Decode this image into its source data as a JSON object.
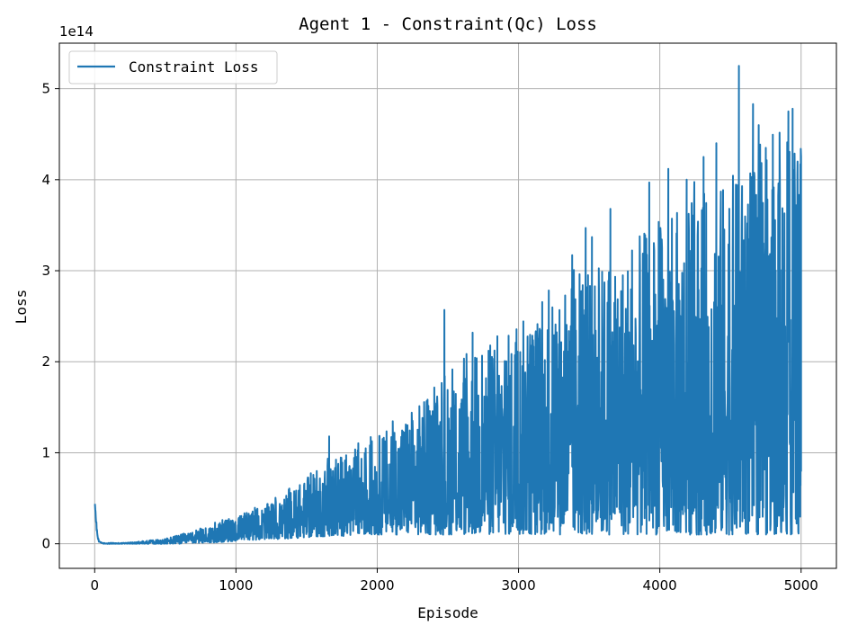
{
  "chart_data": {
    "type": "line",
    "title": "Agent 1 - Constraint(Qc) Loss",
    "xlabel": "Episode",
    "ylabel": "Loss",
    "offset_text": "1e14",
    "y_scale_factor": 100000000000000.0,
    "xlim": [
      -250,
      5250
    ],
    "ylim": [
      -0.27,
      5.5
    ],
    "xticks": [
      0,
      1000,
      2000,
      3000,
      4000,
      5000
    ],
    "xtick_labels": [
      "0",
      "1000",
      "2000",
      "3000",
      "4000",
      "5000"
    ],
    "yticks": [
      0,
      1,
      2,
      3,
      4,
      5
    ],
    "ytick_labels": [
      "0",
      "1",
      "2",
      "3",
      "4",
      "5"
    ],
    "grid": true,
    "legend": {
      "position": "top-left",
      "entries": [
        "Constraint Loss"
      ]
    },
    "series": [
      {
        "name": "Constraint Loss",
        "color": "#1f77b4",
        "x": [
          0,
          10,
          20,
          30,
          40,
          60,
          100,
          200,
          300,
          400,
          500,
          600,
          700,
          800,
          900,
          1000,
          1100,
          1200,
          1300,
          1400,
          1500,
          1600,
          1700,
          1800,
          1900,
          2000,
          2100,
          2200,
          2300,
          2400,
          2500,
          2600,
          2700,
          2800,
          2900,
          3000,
          3100,
          3200,
          3300,
          3400,
          3500,
          3600,
          3700,
          3800,
          3900,
          4000,
          4100,
          4200,
          4300,
          4400,
          4500,
          4600,
          4700,
          4800,
          4900,
          5000
        ],
        "upper": [
          0.52,
          0.3,
          0.1,
          0.03,
          0.02,
          0.01,
          0.01,
          0.01,
          0.02,
          0.04,
          0.06,
          0.1,
          0.14,
          0.2,
          0.26,
          0.3,
          0.36,
          0.42,
          0.5,
          0.6,
          0.72,
          0.85,
          0.95,
          1.0,
          1.1,
          1.2,
          1.3,
          1.45,
          1.55,
          1.65,
          1.8,
          1.95,
          2.1,
          2.2,
          2.3,
          2.45,
          2.55,
          2.65,
          2.75,
          2.9,
          3.0,
          3.1,
          3.2,
          3.3,
          3.45,
          3.55,
          3.65,
          3.75,
          3.85,
          3.95,
          4.05,
          4.1,
          4.2,
          4.3,
          4.35,
          4.4
        ],
        "lower": [
          0.3,
          0.05,
          0.01,
          0.0,
          0.0,
          0.0,
          0.0,
          0.0,
          0.0,
          0.0,
          0.0,
          0.0,
          0.01,
          0.01,
          0.02,
          0.03,
          0.04,
          0.05,
          0.05,
          0.06,
          0.07,
          0.08,
          0.08,
          0.09,
          0.09,
          0.1,
          0.1,
          0.1,
          0.1,
          0.1,
          0.1,
          0.1,
          0.1,
          0.1,
          0.1,
          0.1,
          0.1,
          0.1,
          0.1,
          0.1,
          0.1,
          0.1,
          0.1,
          0.1,
          0.1,
          0.1,
          0.1,
          0.1,
          0.1,
          0.1,
          0.1,
          0.1,
          0.1,
          0.1,
          0.1,
          0.1
        ],
        "spikes": [
          [
            1660,
            1.18
          ],
          [
            2475,
            2.57
          ],
          [
            2675,
            2.32
          ],
          [
            2850,
            2.28
          ],
          [
            3380,
            3.17
          ],
          [
            3475,
            3.47
          ],
          [
            3520,
            3.37
          ],
          [
            3650,
            3.68
          ],
          [
            3925,
            3.97
          ],
          [
            4060,
            4.12
          ],
          [
            4190,
            4.0
          ],
          [
            4310,
            4.25
          ],
          [
            4400,
            4.4
          ],
          [
            4560,
            5.25
          ],
          [
            4660,
            4.83
          ],
          [
            4700,
            4.6
          ],
          [
            4750,
            4.35
          ],
          [
            4800,
            4.0
          ],
          [
            4850,
            3.9
          ],
          [
            4910,
            4.75
          ],
          [
            4940,
            4.78
          ],
          [
            4975,
            4.2
          ],
          [
            4995,
            4.17
          ]
        ]
      }
    ]
  }
}
